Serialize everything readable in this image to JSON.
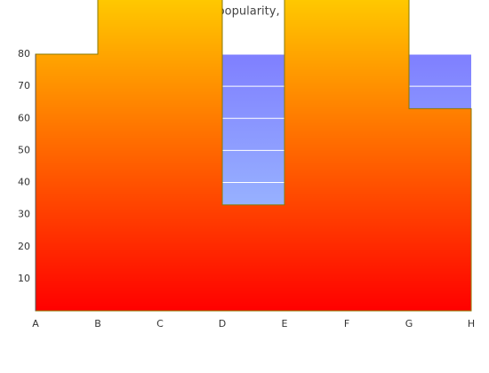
{
  "chart_data": {
    "type": "area",
    "step": "post",
    "title": "Avana popularity, ages",
    "categories": [
      "A",
      "B",
      "C",
      "D",
      "E",
      "F",
      "G",
      "H"
    ],
    "values": [
      80,
      100,
      100,
      33,
      100,
      100,
      63,
      63
    ],
    "color": [
      "#ffc800",
      "#ff0000"
    ],
    "edge_color": "#8a7a00",
    "background": [
      "#7f7fff",
      "#a8d4ff"
    ],
    "ylim": [
      0,
      80
    ],
    "yticks": [
      10,
      20,
      30,
      40,
      50,
      60,
      70,
      80
    ],
    "grid": true
  }
}
